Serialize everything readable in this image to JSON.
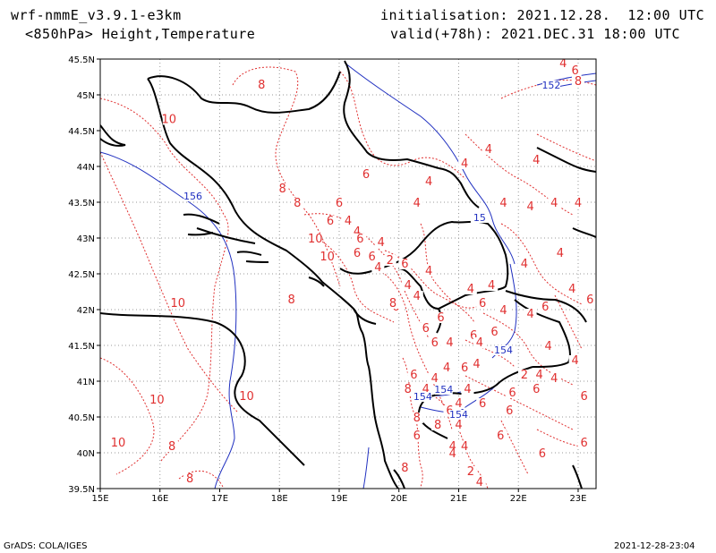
{
  "header": {
    "model": "wrf-nmmE_v3.9.1-e3km",
    "level": "<850hPa> Height,Temperature",
    "init": "initialisation: 2021.12.28.  12:00 UTC",
    "valid": "valid(+78h): 2021.DEC.31 18:00 UTC"
  },
  "footer": {
    "left": "GrADS: COLA/IGES",
    "right": "2021-12-28-23:04"
  },
  "colors": {
    "temperature": "#e03030",
    "height": "#2030c0",
    "coast": "#000000",
    "grid": "#999999"
  },
  "chart_data": {
    "type": "map",
    "lon_range": [
      15,
      23.3
    ],
    "lat_range": [
      39.5,
      45.5
    ],
    "x_ticks": [
      "15E",
      "16E",
      "17E",
      "18E",
      "19E",
      "20E",
      "21E",
      "22E",
      "23E"
    ],
    "y_ticks": [
      "39.5N",
      "40N",
      "40.5N",
      "41N",
      "41.5N",
      "42N",
      "42.5N",
      "43N",
      "43.5N",
      "44N",
      "44.5N",
      "45N",
      "45.5N"
    ],
    "temperature_labels": [
      {
        "text": "8",
        "lon": 17.7,
        "lat": 45.1
      },
      {
        "text": "10",
        "lon": 16.15,
        "lat": 44.62
      },
      {
        "text": "8",
        "lon": 18.05,
        "lat": 43.65
      },
      {
        "text": "8",
        "lon": 18.3,
        "lat": 43.45
      },
      {
        "text": "6",
        "lon": 19.45,
        "lat": 43.85
      },
      {
        "text": "4",
        "lon": 20.5,
        "lat": 43.75
      },
      {
        "text": "4",
        "lon": 21.1,
        "lat": 44.0
      },
      {
        "text": "4",
        "lon": 20.3,
        "lat": 43.45
      },
      {
        "text": "4",
        "lon": 21.5,
        "lat": 44.2
      },
      {
        "text": "4",
        "lon": 22.3,
        "lat": 44.05
      },
      {
        "text": "4",
        "lon": 22.6,
        "lat": 43.45
      },
      {
        "text": "4",
        "lon": 21.75,
        "lat": 43.45
      },
      {
        "text": "4",
        "lon": 22.2,
        "lat": 43.4
      },
      {
        "text": "4",
        "lon": 23.0,
        "lat": 43.45
      },
      {
        "text": "6",
        "lon": 19.0,
        "lat": 43.45
      },
      {
        "text": "6",
        "lon": 18.85,
        "lat": 43.2
      },
      {
        "text": "4",
        "lon": 19.15,
        "lat": 43.2
      },
      {
        "text": "4",
        "lon": 19.3,
        "lat": 43.05
      },
      {
        "text": "10",
        "lon": 18.6,
        "lat": 42.95
      },
      {
        "text": "6",
        "lon": 19.35,
        "lat": 42.95
      },
      {
        "text": "4",
        "lon": 19.7,
        "lat": 42.9
      },
      {
        "text": "6",
        "lon": 19.55,
        "lat": 42.7
      },
      {
        "text": "10",
        "lon": 18.8,
        "lat": 42.7
      },
      {
        "text": "6",
        "lon": 19.3,
        "lat": 42.75
      },
      {
        "text": "2",
        "lon": 19.85,
        "lat": 42.65
      },
      {
        "text": "6",
        "lon": 20.1,
        "lat": 42.6
      },
      {
        "text": "4",
        "lon": 19.65,
        "lat": 42.55
      },
      {
        "text": "4",
        "lon": 20.15,
        "lat": 42.3
      },
      {
        "text": "4",
        "lon": 20.3,
        "lat": 42.15
      },
      {
        "text": "6",
        "lon": 19.95,
        "lat": 42.0
      },
      {
        "text": "8",
        "lon": 19.9,
        "lat": 42.05
      },
      {
        "text": "4",
        "lon": 20.5,
        "lat": 42.5
      },
      {
        "text": "4",
        "lon": 21.2,
        "lat": 42.25
      },
      {
        "text": "4",
        "lon": 21.55,
        "lat": 42.3
      },
      {
        "text": "4",
        "lon": 22.7,
        "lat": 42.75
      },
      {
        "text": "4",
        "lon": 22.1,
        "lat": 42.6
      },
      {
        "text": "4",
        "lon": 22.9,
        "lat": 42.25
      },
      {
        "text": "6",
        "lon": 22.45,
        "lat": 42.0
      },
      {
        "text": "4",
        "lon": 22.2,
        "lat": 41.9
      },
      {
        "text": "4",
        "lon": 21.75,
        "lat": 41.95
      },
      {
        "text": "6",
        "lon": 21.4,
        "lat": 42.05
      },
      {
        "text": "6",
        "lon": 21.25,
        "lat": 41.6
      },
      {
        "text": "6",
        "lon": 20.7,
        "lat": 41.85
      },
      {
        "text": "6",
        "lon": 20.45,
        "lat": 41.7
      },
      {
        "text": "4",
        "lon": 20.85,
        "lat": 41.5
      },
      {
        "text": "6",
        "lon": 20.6,
        "lat": 41.5
      },
      {
        "text": "6",
        "lon": 21.6,
        "lat": 41.65
      },
      {
        "text": "4",
        "lon": 21.35,
        "lat": 41.5
      },
      {
        "text": "4",
        "lon": 22.5,
        "lat": 41.45
      },
      {
        "text": "6",
        "lon": 23.2,
        "lat": 42.1
      },
      {
        "text": "4",
        "lon": 22.95,
        "lat": 41.25
      },
      {
        "text": "4",
        "lon": 22.35,
        "lat": 41.05
      },
      {
        "text": "2",
        "lon": 22.1,
        "lat": 41.05
      },
      {
        "text": "4",
        "lon": 22.6,
        "lat": 41.0
      },
      {
        "text": "6",
        "lon": 21.9,
        "lat": 40.8
      },
      {
        "text": "6",
        "lon": 22.3,
        "lat": 40.85
      },
      {
        "text": "6",
        "lon": 23.1,
        "lat": 40.75
      },
      {
        "text": "4",
        "lon": 20.8,
        "lat": 41.15
      },
      {
        "text": "6",
        "lon": 21.1,
        "lat": 41.15
      },
      {
        "text": "4",
        "lon": 21.3,
        "lat": 41.2
      },
      {
        "text": "4",
        "lon": 20.6,
        "lat": 41.0
      },
      {
        "text": "6",
        "lon": 20.25,
        "lat": 41.05
      },
      {
        "text": "4",
        "lon": 20.45,
        "lat": 40.85
      },
      {
        "text": "8",
        "lon": 20.15,
        "lat": 40.85
      },
      {
        "text": "4",
        "lon": 21.15,
        "lat": 40.85
      },
      {
        "text": "6",
        "lon": 21.4,
        "lat": 40.65
      },
      {
        "text": "6",
        "lon": 21.85,
        "lat": 40.55
      },
      {
        "text": "4",
        "lon": 21.0,
        "lat": 40.65
      },
      {
        "text": "6",
        "lon": 20.85,
        "lat": 40.55
      },
      {
        "text": "8",
        "lon": 20.3,
        "lat": 40.45
      },
      {
        "text": "4",
        "lon": 21.0,
        "lat": 40.35
      },
      {
        "text": "8",
        "lon": 20.65,
        "lat": 40.35
      },
      {
        "text": "6",
        "lon": 21.7,
        "lat": 40.2
      },
      {
        "text": "4",
        "lon": 20.9,
        "lat": 40.05
      },
      {
        "text": "4",
        "lon": 21.1,
        "lat": 40.05
      },
      {
        "text": "4",
        "lon": 20.9,
        "lat": 39.95
      },
      {
        "text": "6",
        "lon": 22.4,
        "lat": 39.95
      },
      {
        "text": "6",
        "lon": 23.1,
        "lat": 40.1
      },
      {
        "text": "6",
        "lon": 20.3,
        "lat": 40.2
      },
      {
        "text": "8",
        "lon": 20.1,
        "lat": 39.75
      },
      {
        "text": "2",
        "lon": 21.2,
        "lat": 39.7
      },
      {
        "text": "4",
        "lon": 21.35,
        "lat": 39.55
      },
      {
        "text": "10",
        "lon": 16.3,
        "lat": 42.05
      },
      {
        "text": "10",
        "lon": 15.95,
        "lat": 40.7
      },
      {
        "text": "10",
        "lon": 17.45,
        "lat": 40.75
      },
      {
        "text": "10",
        "lon": 15.3,
        "lat": 40.1
      },
      {
        "text": "8",
        "lon": 16.2,
        "lat": 40.05
      },
      {
        "text": "8",
        "lon": 16.5,
        "lat": 39.6
      },
      {
        "text": "4",
        "lon": 22.75,
        "lat": 45.4
      },
      {
        "text": "6",
        "lon": 22.95,
        "lat": 45.3
      },
      {
        "text": "8",
        "lon": 23.0,
        "lat": 45.15
      },
      {
        "text": "8",
        "lon": 18.2,
        "lat": 42.1
      }
    ],
    "height_labels": [
      {
        "text": "152",
        "lon": 22.55,
        "lat": 45.1
      },
      {
        "text": "156",
        "lon": 16.55,
        "lat": 43.55
      },
      {
        "text": "15",
        "lon": 21.35,
        "lat": 43.25
      },
      {
        "text": "154",
        "lon": 21.75,
        "lat": 41.4
      },
      {
        "text": "154",
        "lon": 20.75,
        "lat": 40.85
      },
      {
        "text": "154",
        "lon": 20.4,
        "lat": 40.75
      },
      {
        "text": "154",
        "lon": 21.0,
        "lat": 40.5
      }
    ]
  }
}
